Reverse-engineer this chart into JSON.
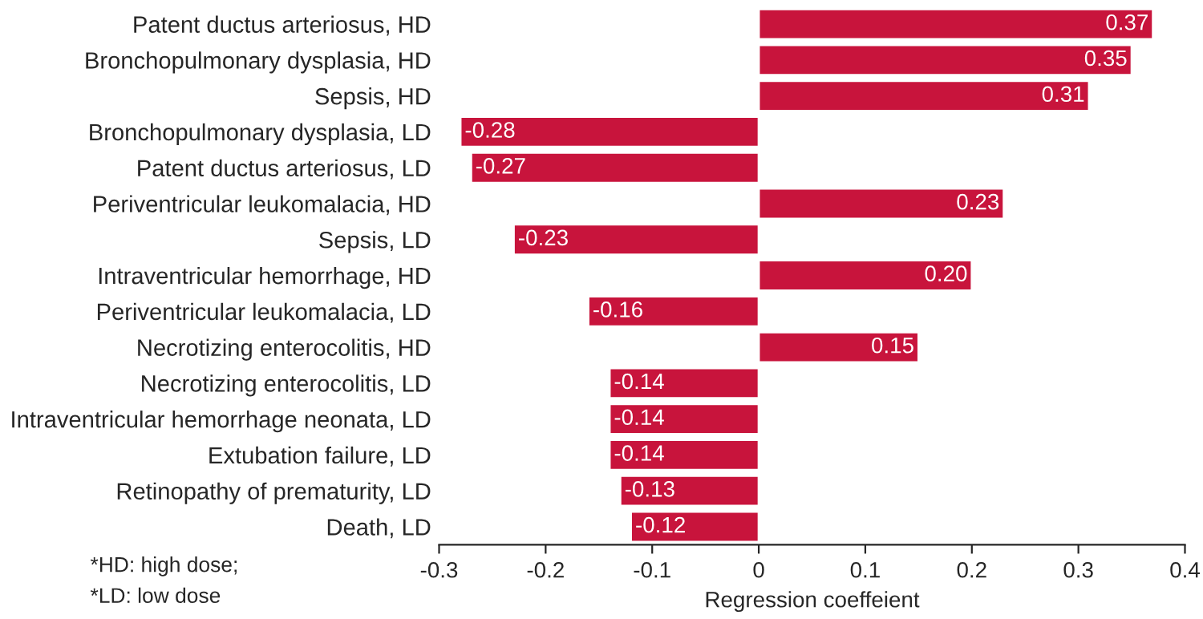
{
  "chart_data": {
    "type": "bar",
    "orientation": "horizontal",
    "xlabel": "Regression coeffeient",
    "categories": [
      "Patent ductus arteriosus, HD",
      "Bronchopulmonary dysplasia, HD",
      "Sepsis, HD",
      "Bronchopulmonary dysplasia, LD",
      "Patent ductus arteriosus, LD",
      "Periventricular leukomalacia, HD",
      "Sepsis, LD",
      "Intraventricular hemorrhage, HD",
      "Periventricular leukomalacia, LD",
      "Necrotizing enterocolitis, HD",
      "Necrotizing enterocolitis, LD",
      "Intraventricular hemorrhage neonata, LD",
      "Extubation failure, LD",
      "Retinopathy of prematurity, LD",
      "Death, LD"
    ],
    "values": [
      0.37,
      0.35,
      0.31,
      -0.28,
      -0.27,
      0.23,
      -0.23,
      0.2,
      -0.16,
      0.15,
      -0.14,
      -0.14,
      -0.14,
      -0.13,
      -0.12
    ],
    "value_labels": [
      "0.37",
      "0.35",
      "0.31",
      "-0.28",
      "-0.27",
      "0.23",
      "-0.23",
      "0.20",
      "-0.16",
      "0.15",
      "-0.14",
      "-0.14",
      "-0.14",
      "-0.13",
      "-0.12"
    ],
    "color": "#c8143c",
    "xlim": [
      -0.3,
      0.4
    ],
    "xticks": [
      -0.3,
      -0.2,
      -0.1,
      0,
      0.1,
      0.2,
      0.3,
      0.4
    ],
    "grid": false,
    "annotations": [
      "*HD: high dose;",
      "*LD: low dose"
    ]
  }
}
